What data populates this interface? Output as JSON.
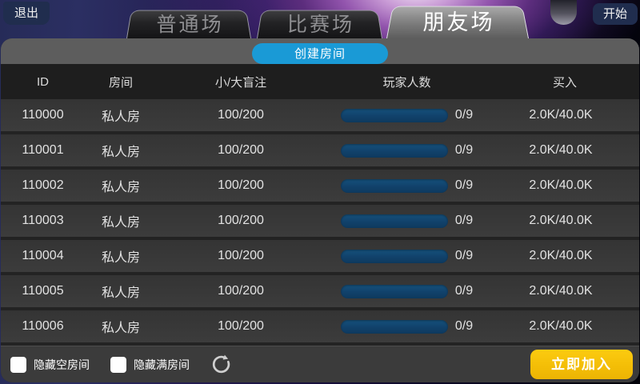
{
  "top_bar": {
    "exit_label": "退出",
    "start_label": "开始",
    "tabs": [
      {
        "label": "普通场",
        "active": false
      },
      {
        "label": "比赛场",
        "active": false
      },
      {
        "label": "朋友场",
        "active": true
      }
    ]
  },
  "lobby": {
    "create_room_label": "创建房间",
    "table": {
      "columns": [
        "ID",
        "房间",
        "小/大盲注",
        "玩家人数",
        "买入"
      ],
      "rows": [
        {
          "id": "110000",
          "room": "私人房",
          "blinds": "100/200",
          "players": "0/9",
          "players_current": 0,
          "players_max": 9,
          "buyin": "2.0K/40.0K"
        },
        {
          "id": "110001",
          "room": "私人房",
          "blinds": "100/200",
          "players": "0/9",
          "players_current": 0,
          "players_max": 9,
          "buyin": "2.0K/40.0K"
        },
        {
          "id": "110002",
          "room": "私人房",
          "blinds": "100/200",
          "players": "0/9",
          "players_current": 0,
          "players_max": 9,
          "buyin": "2.0K/40.0K"
        },
        {
          "id": "110003",
          "room": "私人房",
          "blinds": "100/200",
          "players": "0/9",
          "players_current": 0,
          "players_max": 9,
          "buyin": "2.0K/40.0K"
        },
        {
          "id": "110004",
          "room": "私人房",
          "blinds": "100/200",
          "players": "0/9",
          "players_current": 0,
          "players_max": 9,
          "buyin": "2.0K/40.0K"
        },
        {
          "id": "110005",
          "room": "私人房",
          "blinds": "100/200",
          "players": "0/9",
          "players_current": 0,
          "players_max": 9,
          "buyin": "2.0K/40.0K"
        },
        {
          "id": "110006",
          "room": "私人房",
          "blinds": "100/200",
          "players": "0/9",
          "players_current": 0,
          "players_max": 9,
          "buyin": "2.0K/40.0K"
        }
      ]
    },
    "footer": {
      "hide_empty_label": "隐藏空房间",
      "hide_empty_checked": false,
      "hide_full_label": "隐藏满房间",
      "hide_full_checked": false,
      "join_label": "立即加入"
    }
  },
  "colors": {
    "accent_blue": "#1a9ad6",
    "accent_yellow": "#f3bd06",
    "nav_button_navy": "#202d4e",
    "players_bar_blue": "#11416a",
    "panel_gray": "#5d5d5d",
    "row_gray": "#3a3a3a"
  }
}
